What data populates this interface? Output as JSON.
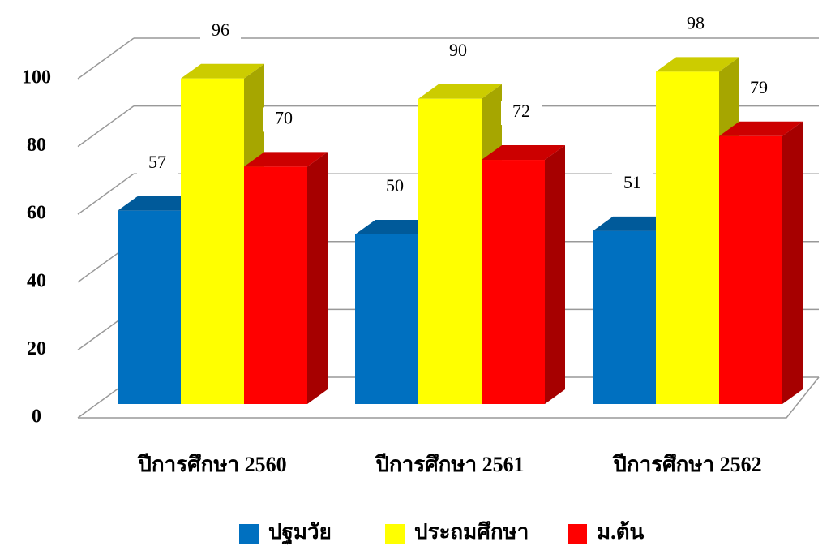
{
  "chart_data": {
    "type": "bar3d",
    "categories": [
      "ปีการศึกษา 2560",
      "ปีการศึกษา 2561",
      "ปีการศึกษา 2562"
    ],
    "series": [
      {
        "name": "ปฐมวัย",
        "color": "#0070c0",
        "values": [
          57,
          50,
          51
        ]
      },
      {
        "name": "ประถมศึกษา",
        "color": "#ffff00",
        "values": [
          96,
          90,
          98
        ]
      },
      {
        "name": "ม.ต้น",
        "color": "#ff0000",
        "values": [
          70,
          72,
          79
        ]
      }
    ],
    "ylim": [
      0,
      100
    ],
    "yticks": [
      0,
      20,
      40,
      60,
      80,
      100
    ],
    "grid": true,
    "legend": "bottom"
  }
}
